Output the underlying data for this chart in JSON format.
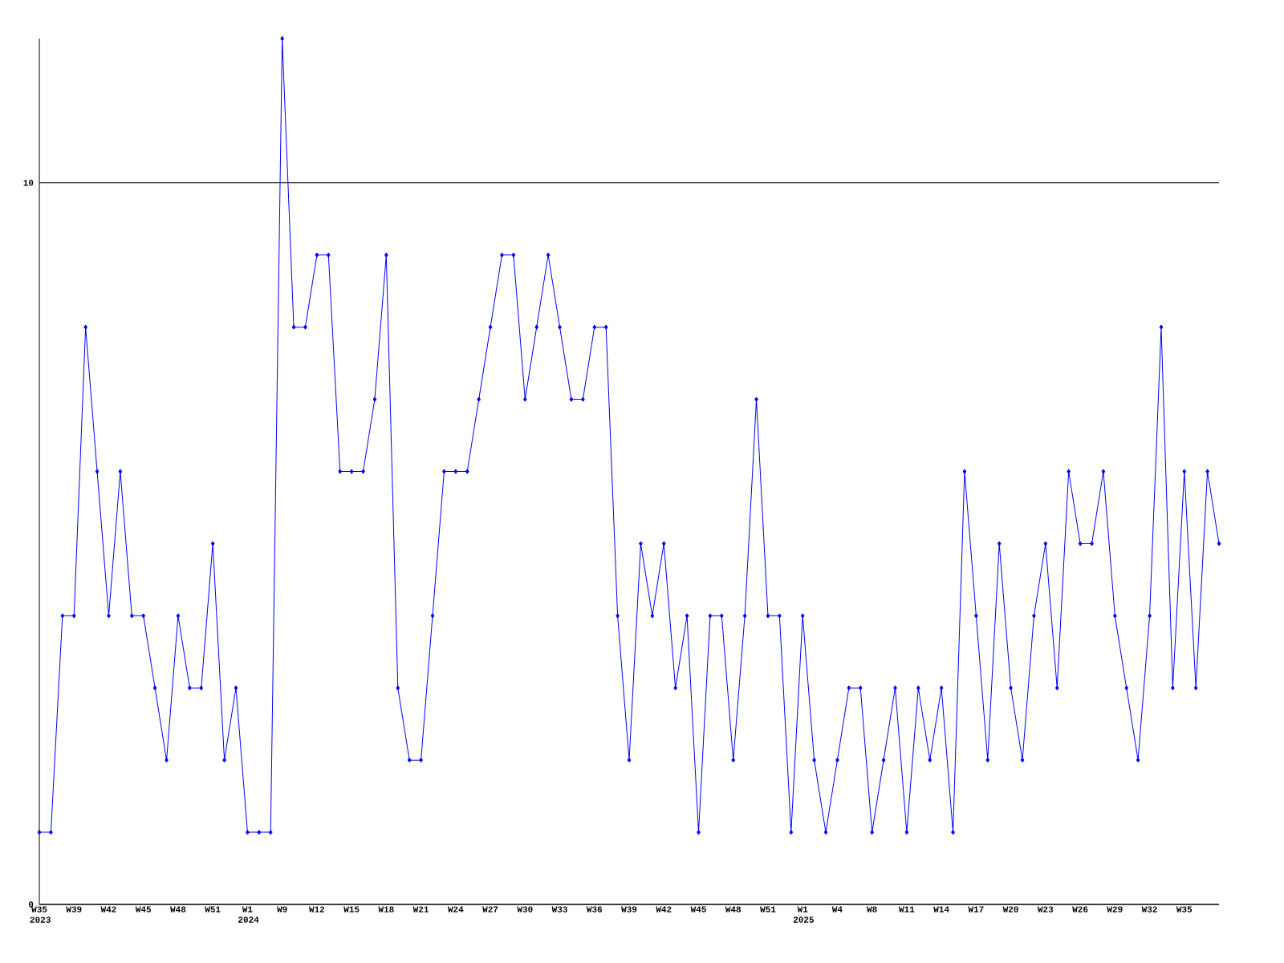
{
  "chart_data": {
    "type": "line",
    "categories": [
      "W35 2023",
      null,
      null,
      "W39",
      null,
      null,
      "W42",
      null,
      null,
      "W45",
      null,
      null,
      "W48",
      null,
      null,
      "W51",
      null,
      null,
      "W1 2024",
      null,
      null,
      "W9",
      null,
      null,
      "W12",
      null,
      null,
      "W15",
      null,
      null,
      "W18",
      null,
      null,
      "W21",
      null,
      null,
      "W24",
      null,
      null,
      "W27",
      null,
      null,
      "W30",
      null,
      null,
      "W33",
      null,
      null,
      "W36",
      null,
      null,
      "W39",
      null,
      null,
      "W42",
      null,
      null,
      "W45",
      null,
      null,
      "W48",
      null,
      null,
      "W51",
      null,
      null,
      "W1 2025",
      null,
      null,
      "W4",
      null,
      null,
      "W8",
      null,
      null,
      "W11",
      null,
      null,
      "W14",
      null,
      null,
      "W17",
      null,
      null,
      "W20",
      null,
      null,
      "W23",
      null,
      null,
      "W26",
      null,
      null,
      "W29",
      null,
      null,
      "W32",
      null,
      null,
      "W35",
      null,
      null,
      null
    ],
    "values": [
      1,
      1,
      4,
      4,
      8,
      6,
      4,
      6,
      4,
      4,
      3,
      2,
      4,
      3,
      3,
      5,
      2,
      3,
      1,
      1,
      1,
      12,
      8,
      8,
      9,
      9,
      6,
      6,
      6,
      7,
      9,
      3,
      2,
      2,
      4,
      6,
      6,
      6,
      7,
      8,
      9,
      9,
      7,
      8,
      9,
      8,
      7,
      7,
      8,
      8,
      4,
      2,
      5,
      4,
      5,
      3,
      4,
      1,
      4,
      4,
      2,
      4,
      7,
      4,
      4,
      1,
      4,
      2,
      1,
      2,
      3,
      3,
      1,
      2,
      3,
      1,
      3,
      2,
      3,
      1,
      6,
      4,
      2,
      5,
      3,
      2,
      4,
      5,
      3,
      6,
      5,
      5,
      6,
      4,
      3,
      2,
      4,
      8,
      3,
      6,
      3,
      6,
      5
    ],
    "color": "#0000ff",
    "marker": "diamond",
    "line_style": "solid",
    "ylim": [
      0,
      12
    ],
    "yticks": [
      0,
      10
    ],
    "grid": "y"
  }
}
